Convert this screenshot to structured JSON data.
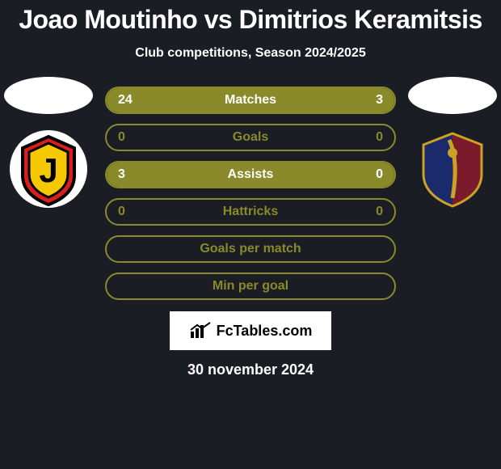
{
  "title": "Joao Moutinho vs Dimitrios Keramitsis",
  "subtitle": "Club competitions, Season 2024/2025",
  "brand": "FcTables.com",
  "date": "30 november 2024",
  "colors": {
    "bg": "#1a1d23",
    "text": "#ffffff",
    "fill": "#8a8a2a",
    "border": "#8a8a2a",
    "brand_bg": "#ffffff",
    "brand_text": "#000000"
  },
  "player_left": {
    "photo_shape": "ellipse",
    "club": "Jagiellonia",
    "badge_bg": "#ffffff",
    "badge_shield_fill": "#d81e1e",
    "badge_shield_stroke": "#000000",
    "badge_inner_fill": "#f5c800",
    "badge_letter": "J"
  },
  "player_right": {
    "photo_shape": "ellipse",
    "club": "Pogon",
    "badge_bg": "transparent",
    "badge_shield_left": "#1a2a6a",
    "badge_shield_right": "#7a1a2a",
    "badge_stripe": "#c9a227"
  },
  "bars": [
    {
      "label": "Matches",
      "left": "24",
      "right": "3",
      "left_num": 24,
      "right_num": 3,
      "border": "#8a8a2a",
      "fill": "#8a8a2a",
      "text": "#ffffff",
      "full": true
    },
    {
      "label": "Goals",
      "left": "0",
      "right": "0",
      "left_num": 0,
      "right_num": 0,
      "border": "#8a8a2a",
      "fill": "#8a8a2a",
      "text": "#8a8a2a",
      "full": false
    },
    {
      "label": "Assists",
      "left": "3",
      "right": "0",
      "left_num": 3,
      "right_num": 0,
      "border": "#8a8a2a",
      "fill": "#8a8a2a",
      "text": "#ffffff",
      "full": true
    },
    {
      "label": "Hattricks",
      "left": "0",
      "right": "0",
      "left_num": 0,
      "right_num": 0,
      "border": "#8a8a2a",
      "fill": "#8a8a2a",
      "text": "#8a8a2a",
      "full": false
    },
    {
      "label": "Goals per match",
      "left": "",
      "right": "",
      "left_num": 0,
      "right_num": 0,
      "border": "#8a8a2a",
      "fill": "#8a8a2a",
      "text": "#8a8a2a",
      "full": false
    },
    {
      "label": "Min per goal",
      "left": "",
      "right": "",
      "left_num": 0,
      "right_num": 0,
      "border": "#8a8a2a",
      "fill": "#8a8a2a",
      "text": "#8a8a2a",
      "full": false
    }
  ],
  "bar_style": {
    "height": 34,
    "radius": 17,
    "border_width": 2,
    "label_fontsize": 16,
    "val_fontsize": 16
  }
}
